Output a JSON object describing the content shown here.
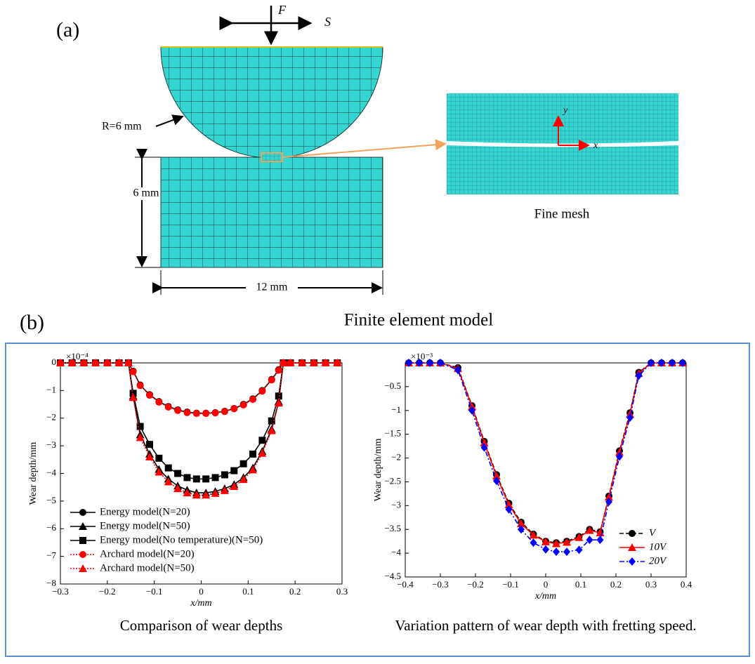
{
  "figure_a": {
    "label": "(a)",
    "force": "F",
    "slide": "S",
    "radius": "R=6 mm",
    "height": "6 mm",
    "width": "12 mm",
    "inset_caption": "Fine mesh",
    "axis_y": "y",
    "axis_x": "x",
    "caption": "Finite element model"
  },
  "figure_b": {
    "label": "(b)"
  },
  "chart_data": [
    {
      "type": "line",
      "caption": "Comparison of wear depths",
      "xlabel": "x/mm",
      "ylabel": "Wear depth/mm",
      "y_exponent": "×10⁻⁴",
      "legend": "lower left",
      "grid": false,
      "xlim": [
        -0.3,
        0.3
      ],
      "ylim": [
        -8,
        0
      ],
      "xticks": [
        {
          "value": -0.3,
          "label": "−0.3"
        },
        {
          "value": -0.2,
          "label": "−0.2"
        },
        {
          "value": -0.1,
          "label": "−0.1"
        },
        0,
        0.1,
        0.2,
        0.3
      ],
      "yticks": [
        0,
        {
          "value": -1,
          "label": "−1"
        },
        {
          "value": -2,
          "label": "−2"
        },
        {
          "value": -3,
          "label": "−3"
        },
        {
          "value": -4,
          "label": "−4"
        },
        {
          "value": -5,
          "label": "−5"
        },
        {
          "value": -6,
          "label": "−6"
        },
        {
          "value": -7,
          "label": "−7"
        },
        {
          "value": -8,
          "label": "−8"
        }
      ],
      "x": [
        -0.3,
        -0.275,
        -0.25,
        -0.225,
        -0.2,
        -0.175,
        -0.155,
        -0.145,
        -0.13,
        -0.11,
        -0.09,
        -0.07,
        -0.05,
        -0.03,
        -0.01,
        0.01,
        0.03,
        0.05,
        0.07,
        0.09,
        0.11,
        0.13,
        0.15,
        0.165,
        0.175,
        0.19,
        0.215,
        0.24,
        0.265,
        0.29
      ],
      "series": [
        {
          "name": "Energy model(N=20)",
          "color": "#000000",
          "marker": "circle",
          "dash": "solid",
          "values": [
            0,
            0,
            0,
            0,
            0,
            0,
            0,
            -0.3,
            -0.8,
            -1.15,
            -1.4,
            -1.58,
            -1.7,
            -1.78,
            -1.82,
            -1.82,
            -1.8,
            -1.75,
            -1.65,
            -1.5,
            -1.3,
            -1.0,
            -0.6,
            -0.25,
            0,
            0,
            0,
            0,
            0,
            0
          ]
        },
        {
          "name": "Energy model(N=50)",
          "color": "#000000",
          "marker": "triangle",
          "dash": "solid",
          "values": [
            0,
            0,
            0,
            0,
            0,
            0,
            0,
            -1.2,
            -2.6,
            -3.3,
            -3.85,
            -4.2,
            -4.45,
            -4.6,
            -4.7,
            -4.7,
            -4.65,
            -4.55,
            -4.4,
            -4.15,
            -3.8,
            -3.2,
            -2.4,
            -1.4,
            0,
            0,
            0,
            0,
            0,
            0
          ]
        },
        {
          "name": "Energy model(No temperature)(N=50)",
          "color": "#000000",
          "marker": "square",
          "dash": "solid",
          "values": [
            0,
            0,
            0,
            0,
            0,
            0,
            0,
            -1.1,
            -2.3,
            -2.95,
            -3.45,
            -3.8,
            -4.0,
            -4.15,
            -4.2,
            -4.2,
            -4.15,
            -4.05,
            -3.9,
            -3.65,
            -3.3,
            -2.8,
            -2.1,
            -1.2,
            0,
            0,
            0,
            0,
            0,
            0
          ]
        },
        {
          "name": "Archard model(N=20)",
          "color": "#ff0000",
          "marker": "circle",
          "dash": "dotted",
          "values": [
            0,
            0,
            0,
            0,
            0,
            0,
            0,
            -0.32,
            -0.82,
            -1.17,
            -1.42,
            -1.6,
            -1.72,
            -1.8,
            -1.83,
            -1.83,
            -1.81,
            -1.76,
            -1.66,
            -1.52,
            -1.32,
            -1.02,
            -0.62,
            -0.27,
            0,
            0,
            0,
            0,
            0,
            0
          ]
        },
        {
          "name": "Archard model(N=50)",
          "color": "#ff0000",
          "marker": "triangle",
          "dash": "dotted",
          "values": [
            0,
            0,
            0,
            0,
            0,
            0,
            0,
            -1.25,
            -2.7,
            -3.4,
            -3.95,
            -4.3,
            -4.55,
            -4.7,
            -4.78,
            -4.78,
            -4.72,
            -4.62,
            -4.47,
            -4.22,
            -3.87,
            -3.27,
            -2.45,
            -1.45,
            0,
            0,
            0,
            0,
            0,
            0
          ]
        }
      ]
    },
    {
      "type": "line",
      "caption": "Variation pattern of wear depth with fretting speed.",
      "xlabel": "x/mm",
      "ylabel": "Wear depth/mm",
      "y_exponent": "×10⁻³",
      "legend": "lower right",
      "grid": false,
      "xlim": [
        -0.4,
        0.4
      ],
      "ylim": [
        -4.5,
        0
      ],
      "xticks": [
        {
          "value": -0.4,
          "label": "−0.4"
        },
        {
          "value": -0.3,
          "label": "−0.3"
        },
        {
          "value": -0.2,
          "label": "−0.2"
        },
        {
          "value": -0.1,
          "label": "−0.1"
        },
        0,
        0.1,
        0.2,
        0.3,
        0.4
      ],
      "yticks": [
        {
          "value": -0.5,
          "label": "−0.5"
        },
        {
          "value": -1,
          "label": "−1"
        },
        {
          "value": -1.5,
          "label": "−1.5"
        },
        {
          "value": -2,
          "label": "−2"
        },
        {
          "value": -2.5,
          "label": "−2.5"
        },
        {
          "value": -3,
          "label": "−3"
        },
        {
          "value": -3.5,
          "label": "−3.5"
        },
        {
          "value": -4,
          "label": "−4"
        },
        {
          "value": -4.5,
          "label": "−4.5"
        }
      ],
      "x": [
        -0.39,
        -0.36,
        -0.33,
        -0.3,
        -0.25,
        -0.21,
        -0.175,
        -0.14,
        -0.105,
        -0.07,
        -0.035,
        0,
        0.03,
        0.06,
        0.095,
        0.125,
        0.155,
        0.18,
        0.21,
        0.24,
        0.265,
        0.3,
        0.33,
        0.36,
        0.39
      ],
      "series": [
        {
          "name": "V",
          "color": "#000000",
          "marker": "circle",
          "dash": "dashed",
          "values": [
            0,
            0,
            0,
            0,
            -0.1,
            -0.9,
            -1.65,
            -2.35,
            -2.95,
            -3.35,
            -3.6,
            -3.75,
            -3.78,
            -3.75,
            -3.65,
            -3.5,
            -3.55,
            -2.8,
            -1.85,
            -1.05,
            -0.2,
            0,
            0,
            0,
            0
          ]
        },
        {
          "name": "10V",
          "color": "#ff0000",
          "marker": "triangle",
          "dash": "solid",
          "values": [
            0,
            0,
            0,
            0,
            -0.12,
            -0.92,
            -1.68,
            -2.38,
            -2.98,
            -3.38,
            -3.62,
            -3.76,
            -3.8,
            -3.77,
            -3.67,
            -3.52,
            -3.57,
            -2.82,
            -1.88,
            -1.08,
            -0.22,
            0,
            0,
            0,
            0
          ]
        },
        {
          "name": "20V",
          "color": "#0000ff",
          "marker": "diamond",
          "dash": "dashdot",
          "values": [
            0,
            0,
            0,
            0,
            -0.15,
            -1.0,
            -1.78,
            -2.48,
            -3.08,
            -3.5,
            -3.78,
            -3.92,
            -3.97,
            -3.97,
            -3.93,
            -3.72,
            -3.72,
            -2.92,
            -1.97,
            -1.15,
            -0.27,
            0,
            0,
            0,
            0
          ]
        }
      ]
    }
  ]
}
